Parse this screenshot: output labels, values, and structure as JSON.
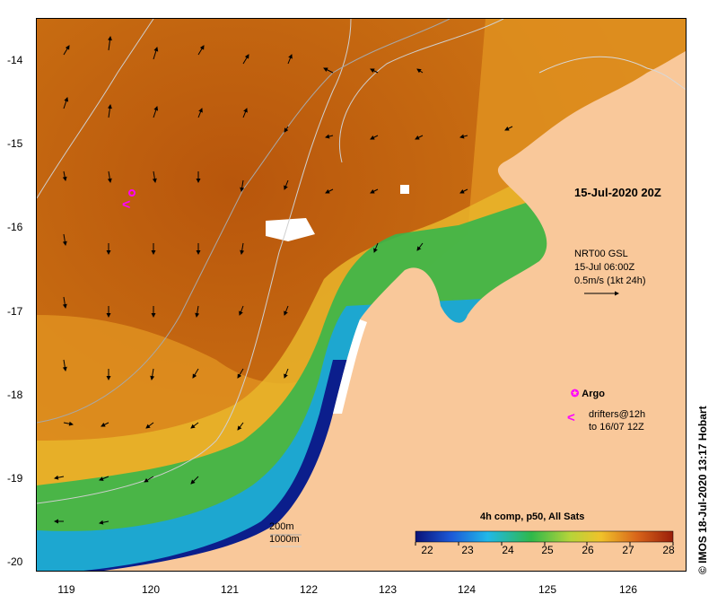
{
  "map": {
    "timestamp": "15-Jul-2020 20Z",
    "credit": "© IMOS 18-Jul-2020 13:17 Hobart",
    "colors": {
      "land": "#f9c89a",
      "ocean_warm": "#c5600f",
      "ocean_mid": "#e39a1d",
      "ocean_cool": "#2fb84a",
      "deep_blue": "#0b1e8c"
    }
  },
  "axes": {
    "y_ticks": [
      "-14",
      "-15",
      "-16",
      "-17",
      "-18",
      "-19",
      "-20"
    ],
    "x_ticks": [
      "119",
      "120",
      "121",
      "122",
      "123",
      "124",
      "125",
      "126"
    ]
  },
  "current_legend": {
    "line1": "NRT00 GSL",
    "line2": "15-Jul 06:00Z",
    "line3": "0.5m/s (1kt 24h)"
  },
  "markers": {
    "argo_label": "Argo",
    "drifters_line1": "drifters@12h",
    "drifters_line2": "to 16/07 12Z",
    "drifter_symbol": "<"
  },
  "depth_legend": {
    "shallow": "200m",
    "deep": "1000m"
  },
  "colorbar": {
    "title": "4h comp, p50, All Sats",
    "ticks": [
      "22",
      "23",
      "24",
      "25",
      "26",
      "27",
      "28"
    ]
  }
}
